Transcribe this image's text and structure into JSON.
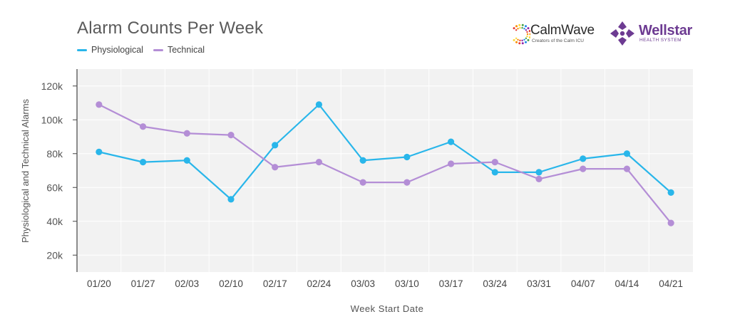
{
  "header": {
    "title": "Alarm Counts Per Week"
  },
  "legend": {
    "physio_label": "Physiological",
    "tech_label": "Technical"
  },
  "logos": {
    "calmwave_name": "CalmWave",
    "calmwave_tagline": "Creators of the Calm ICU",
    "wellstar_name": "Wellstar",
    "wellstar_sub": "HEALTH SYSTEM"
  },
  "colors": {
    "physiological": "#29b6ea",
    "technical": "#b48ed6",
    "plot_bg": "#f2f2f2",
    "wellstar_purple": "#6d3b92"
  },
  "chart_data": {
    "type": "line",
    "title": "Alarm Counts Per Week",
    "xlabel": "Week Start Date",
    "ylabel": "Physiological and Technical Alarms",
    "categories": [
      "01/20",
      "01/27",
      "02/03",
      "02/10",
      "02/17",
      "02/24",
      "03/03",
      "03/10",
      "03/17",
      "03/24",
      "03/31",
      "04/07",
      "04/14",
      "04/21"
    ],
    "y_ticks": [
      "20k",
      "40k",
      "60k",
      "80k",
      "100k",
      "120k"
    ],
    "y_tick_values": [
      20000,
      40000,
      60000,
      80000,
      100000,
      120000
    ],
    "ylim": [
      10000,
      130000
    ],
    "grid": true,
    "legend_position": "top-left",
    "series": [
      {
        "name": "Physiological",
        "values": [
          81000,
          75000,
          76000,
          53000,
          85000,
          109000,
          76000,
          78000,
          87000,
          69000,
          69000,
          77000,
          80000,
          57000
        ]
      },
      {
        "name": "Technical",
        "values": [
          109000,
          96000,
          92000,
          91000,
          72000,
          75000,
          63000,
          63000,
          74000,
          75000,
          65000,
          71000,
          71000,
          39000
        ]
      }
    ]
  }
}
